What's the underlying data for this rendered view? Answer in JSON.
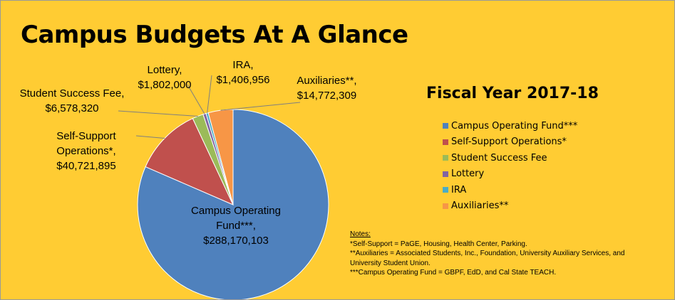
{
  "chart_data": {
    "type": "pie",
    "title": "Campus Budgets At A Glance",
    "subtitle": "Fiscal Year 2017-18",
    "start_angle": "top, clockwise",
    "legend_position": "right",
    "slices": [
      {
        "name": "Campus Operating Fund***",
        "label": "Campus Operating Fund***,",
        "value_label": "$288,170,103",
        "value": 288170103,
        "color": "#4F81BD"
      },
      {
        "name": "Self-Support Operations*",
        "label": "Self-Support Operations*,",
        "value_label": "$40,721,895",
        "value": 40721895,
        "color": "#C0504D"
      },
      {
        "name": "Student Success Fee",
        "label": "Student Success Fee,",
        "value_label": "$6,578,320",
        "value": 6578320,
        "color": "#9BBB59"
      },
      {
        "name": "Lottery",
        "label": "Lottery,",
        "value_label": "$1,802,000",
        "value": 1802000,
        "color": "#8064A2"
      },
      {
        "name": "IRA",
        "label": "IRA,",
        "value_label": "$1,406,956",
        "value": 1406956,
        "color": "#4BACC6"
      },
      {
        "name": "Auxiliaries**",
        "label": "Auxiliaries**,",
        "value_label": "$14,772,309",
        "value": 14772309,
        "color": "#F79646"
      }
    ]
  },
  "background_color": "#FFCC33",
  "notes": {
    "heading": "Notes:",
    "lines": [
      "*Self-Support = PaGE, Housing, Health Center, Parking.",
      "**Auxiliaries = Associated Students, Inc., Foundation, University Auxiliary Services, and",
      "University Student Union.",
      "***Campus Operating Fund = GBPF, EdD, and Cal State TEACH."
    ]
  }
}
